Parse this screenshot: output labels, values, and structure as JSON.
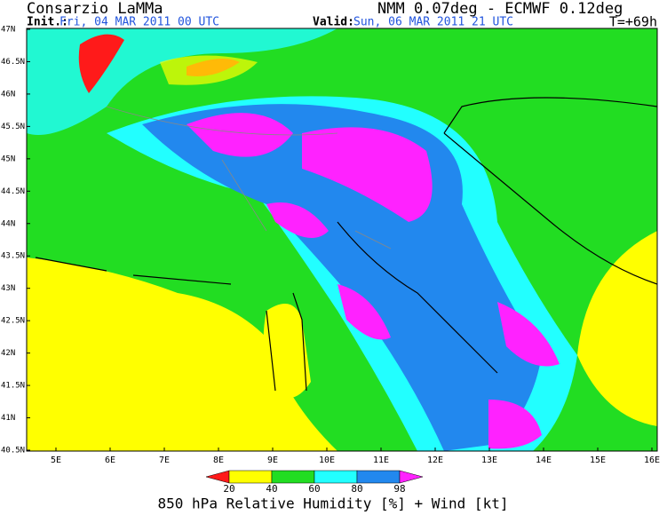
{
  "header": {
    "title": "Consarzio LaMMa",
    "model": "NMM 0.07deg - ECMWF 0.12deg",
    "init_label": "Init.:",
    "init_time": "Fri, 04 MAR 2011  00 UTC",
    "valid_label": "Valid:",
    "valid_time": "Sun, 06 MAR 2011  21 UTC",
    "lead_time": "T=+69h"
  },
  "map": {
    "lat_labels": [
      "47N",
      "46.5N",
      "46N",
      "45.5N",
      "45N",
      "44.5N",
      "44N",
      "43.5N",
      "43N",
      "42.5N",
      "42N",
      "41.5N",
      "41N",
      "40.5N"
    ],
    "lon_labels": [
      "5E",
      "6E",
      "7E",
      "8E",
      "9E",
      "10E",
      "11E",
      "12E",
      "13E",
      "14E",
      "15E",
      "16E"
    ]
  },
  "legend": {
    "values": [
      20,
      40,
      60,
      80,
      98
    ],
    "colors": [
      "#ff1a1a",
      "#ffff00",
      "#22dd22",
      "#22ffff",
      "#2288ee",
      "#ff22ff"
    ]
  },
  "footer": {
    "title": "850 hPa Relative Humidity [%] + Wind [kt]"
  }
}
